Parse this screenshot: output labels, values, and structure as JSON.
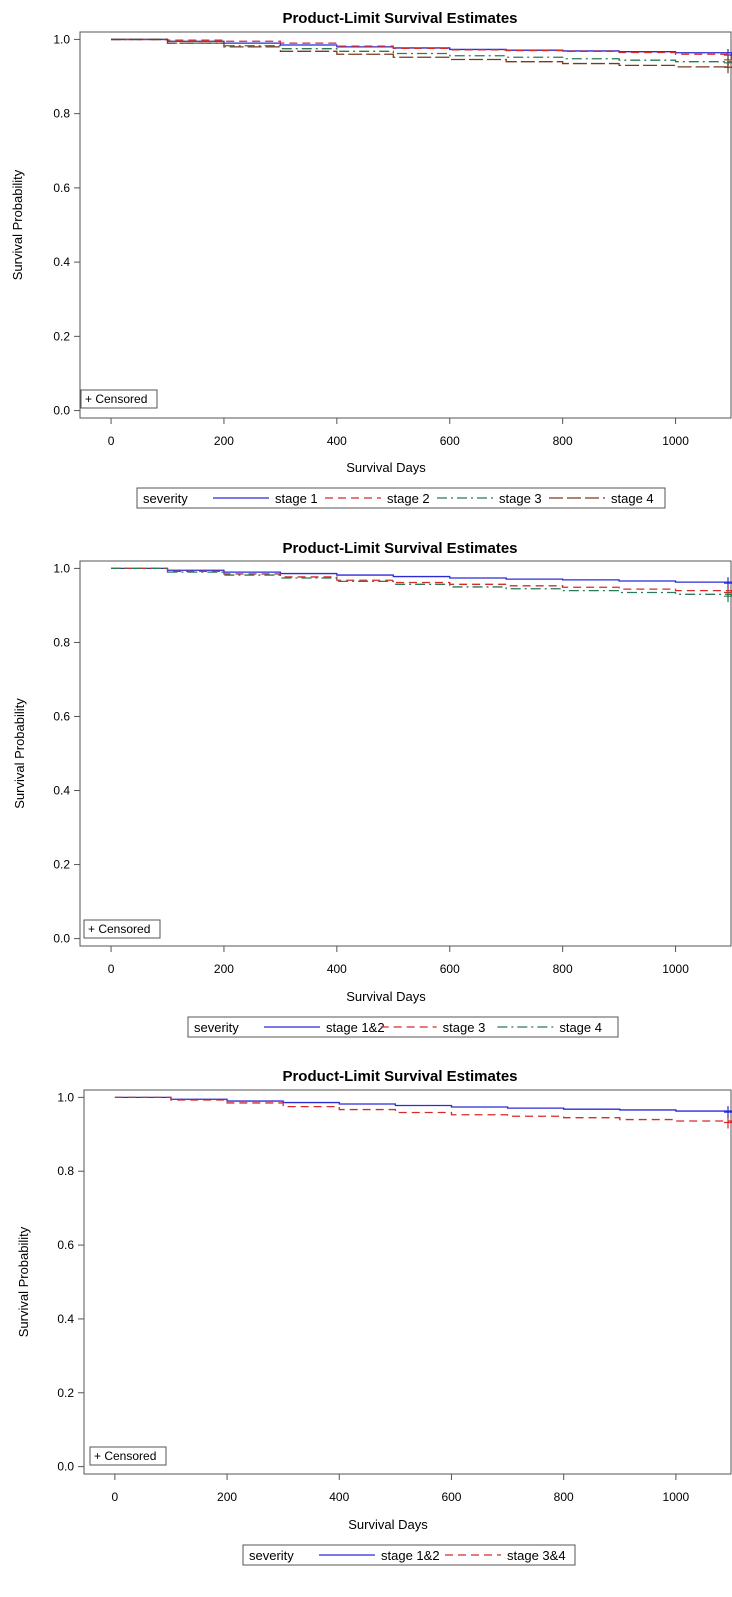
{
  "chart_data": [
    {
      "type": "line",
      "title": "Product-Limit Survival Estimates",
      "xlabel": "Survival Days",
      "ylabel": "Survival Probability",
      "xlim": [
        -55,
        1100
      ],
      "ylim": [
        -0.02,
        1.02
      ],
      "xticks": [
        "0",
        "200",
        "400",
        "600",
        "800",
        "1000"
      ],
      "yticks": [
        "0.0",
        "0.2",
        "0.4",
        "0.6",
        "0.8",
        "1.0"
      ],
      "censored_label": "+ Censored",
      "legend": {
        "title": "severity",
        "position": "bottom"
      },
      "series": [
        {
          "name": "stage 1",
          "color": "#2b2bd6",
          "dash": "",
          "x": [
            0,
            100,
            200,
            300,
            400,
            500,
            600,
            700,
            800,
            900,
            1000,
            1100
          ],
          "y": [
            1.0,
            0.995,
            0.99,
            0.985,
            0.98,
            0.977,
            0.973,
            0.971,
            0.969,
            0.967,
            0.964,
            0.958
          ]
        },
        {
          "name": "stage 2",
          "color": "#d62b2b",
          "dash": "8,5",
          "x": [
            0,
            100,
            200,
            300,
            400,
            500,
            600,
            700,
            800,
            900,
            1000,
            1100
          ],
          "y": [
            1.0,
            0.998,
            0.995,
            0.99,
            0.982,
            0.976,
            0.972,
            0.97,
            0.968,
            0.965,
            0.96,
            0.945
          ]
        },
        {
          "name": "stage 3",
          "color": "#2a7a55",
          "dash": "10,4,2,4",
          "x": [
            0,
            100,
            200,
            300,
            400,
            500,
            600,
            700,
            800,
            900,
            1000,
            1100
          ],
          "y": [
            1.0,
            0.99,
            0.983,
            0.975,
            0.968,
            0.962,
            0.956,
            0.952,
            0.948,
            0.944,
            0.94,
            0.937
          ]
        },
        {
          "name": "stage 4",
          "color": "#7a3b1a",
          "dash": "14,4",
          "x": [
            0,
            100,
            200,
            300,
            400,
            500,
            600,
            700,
            800,
            900,
            1000,
            1100
          ],
          "y": [
            1.0,
            0.99,
            0.98,
            0.968,
            0.96,
            0.952,
            0.946,
            0.94,
            0.935,
            0.93,
            0.926,
            0.925
          ]
        }
      ]
    },
    {
      "type": "line",
      "title": "Product-Limit Survival Estimates",
      "xlabel": "Survival Days",
      "ylabel": "Survival Probability",
      "xlim": [
        -55,
        1100
      ],
      "ylim": [
        -0.02,
        1.02
      ],
      "xticks": [
        "0",
        "200",
        "400",
        "600",
        "800",
        "1000"
      ],
      "yticks": [
        "0.0",
        "0.2",
        "0.4",
        "0.6",
        "0.8",
        "1.0"
      ],
      "censored_label": "+ Censored",
      "legend": {
        "title": "severity",
        "position": "bottom"
      },
      "series": [
        {
          "name": "stage 1&2",
          "color": "#2b2bd6",
          "dash": "",
          "x": [
            0,
            100,
            200,
            300,
            400,
            500,
            600,
            700,
            800,
            900,
            1000,
            1100
          ],
          "y": [
            1.0,
            0.995,
            0.99,
            0.986,
            0.982,
            0.978,
            0.974,
            0.971,
            0.969,
            0.966,
            0.963,
            0.96
          ]
        },
        {
          "name": "stage 3",
          "color": "#d62b2b",
          "dash": "8,5",
          "x": [
            0,
            100,
            200,
            300,
            400,
            500,
            600,
            700,
            800,
            900,
            1000,
            1100
          ],
          "y": [
            1.0,
            0.992,
            0.985,
            0.977,
            0.968,
            0.962,
            0.957,
            0.953,
            0.949,
            0.944,
            0.94,
            0.935
          ]
        },
        {
          "name": "stage 4",
          "color": "#2a7a55",
          "dash": "10,4,2,4",
          "x": [
            0,
            100,
            200,
            300,
            400,
            500,
            600,
            700,
            800,
            900,
            1000,
            1100
          ],
          "y": [
            1.0,
            0.99,
            0.982,
            0.974,
            0.965,
            0.957,
            0.95,
            0.945,
            0.94,
            0.935,
            0.93,
            0.925
          ]
        }
      ]
    },
    {
      "type": "line",
      "title": "Product-Limit Survival Estimates",
      "xlabel": "Survival Days",
      "ylabel": "Survival Probability",
      "xlim": [
        -55,
        1100
      ],
      "ylim": [
        -0.02,
        1.02
      ],
      "xticks": [
        "0",
        "200",
        "400",
        "600",
        "800",
        "1000"
      ],
      "yticks": [
        "0.0",
        "0.2",
        "0.4",
        "0.6",
        "0.8",
        "1.0"
      ],
      "censored_label": "+ Censored",
      "legend": {
        "title": "severity",
        "position": "bottom"
      },
      "series": [
        {
          "name": "stage 1&2",
          "color": "#2b2bd6",
          "dash": "",
          "x": [
            0,
            100,
            200,
            300,
            400,
            500,
            600,
            700,
            800,
            900,
            1000,
            1100
          ],
          "y": [
            1.0,
            0.995,
            0.99,
            0.986,
            0.982,
            0.978,
            0.974,
            0.971,
            0.968,
            0.966,
            0.963,
            0.96
          ]
        },
        {
          "name": "stage 3&4",
          "color": "#d62b2b",
          "dash": "8,5",
          "x": [
            0,
            100,
            200,
            300,
            400,
            500,
            600,
            700,
            800,
            900,
            1000,
            1100
          ],
          "y": [
            1.0,
            0.993,
            0.985,
            0.975,
            0.967,
            0.959,
            0.953,
            0.949,
            0.945,
            0.94,
            0.936,
            0.932
          ]
        }
      ]
    }
  ]
}
